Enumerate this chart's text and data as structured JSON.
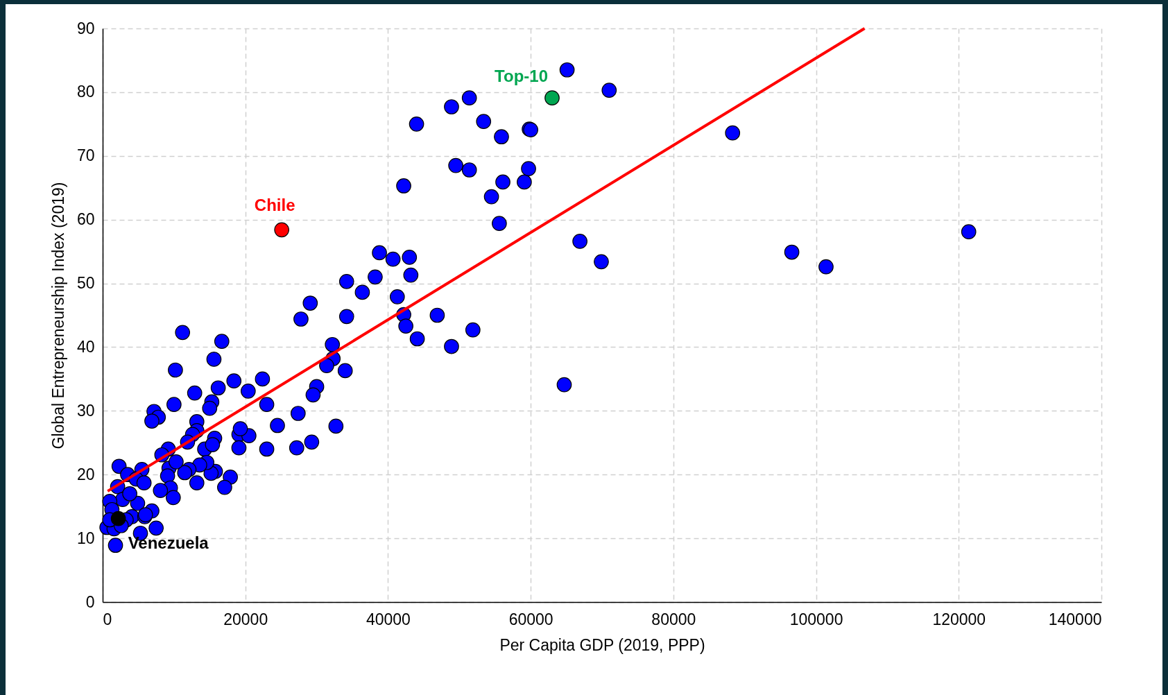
{
  "chart_data": {
    "type": "scatter",
    "xlabel": "Per Capita GDP (2019, PPP)",
    "ylabel": "Global Entrepreneurship Index (2019)",
    "xlim": [
      0,
      140000
    ],
    "ylim": [
      0,
      90
    ],
    "xticks": [
      0,
      20000,
      40000,
      60000,
      80000,
      100000,
      120000,
      140000
    ],
    "yticks": [
      0,
      10,
      20,
      30,
      40,
      50,
      60,
      70,
      80,
      90
    ],
    "grid": true,
    "marker": "circle",
    "series": [
      {
        "color": "#0000ff",
        "x": [
          44000,
          48900,
          51400,
          53400,
          55900,
          59800,
          60000,
          65100,
          71000,
          42200,
          49500,
          51400,
          56100,
          59100,
          59700,
          54500,
          55600,
          66900,
          69900,
          88300,
          96600,
          101400,
          121400,
          64700,
          38800,
          40700,
          43000,
          43200,
          38200,
          34200,
          36400,
          41300,
          42200,
          42500,
          44100,
          46900,
          51900,
          48900,
          29100,
          27800,
          34200,
          32200,
          32300,
          31400,
          34000,
          30000,
          29500,
          27400,
          32700,
          29300,
          27200,
          24500,
          23000,
          22400,
          23000,
          20400,
          18400,
          16700,
          11200,
          15600,
          10200,
          10000,
          12900,
          16200,
          15300,
          15000,
          7200,
          7800,
          6900,
          13200,
          13200,
          12600,
          11900,
          9200,
          8300,
          14300,
          15700,
          15400,
          19100,
          20500,
          19300,
          19100,
          17900,
          17100,
          15800,
          15200,
          14600,
          13600,
          13200,
          12100,
          11500,
          9300,
          10300,
          9100,
          9500,
          8100,
          9900,
          5500,
          2300,
          3500,
          4700,
          5800,
          2100,
          2800,
          1000,
          1300,
          600,
          1600,
          1800,
          4100,
          4900,
          5900,
          6900,
          6000,
          5300,
          7500,
          3300,
          2600,
          1000,
          3800
        ],
        "values": [
          75,
          77.7,
          79.1,
          75.4,
          73.0,
          74.2,
          74.1,
          83.5,
          80.3,
          65.3,
          68.5,
          67.8,
          65.9,
          65.9,
          68.0,
          63.6,
          59.4,
          56.6,
          53.4,
          73.6,
          54.9,
          52.6,
          58.1,
          34.1,
          54.8,
          53.8,
          54.1,
          51.3,
          51.0,
          50.3,
          48.6,
          47.9,
          45.1,
          43.3,
          41.3,
          45.0,
          42.7,
          40.1,
          46.9,
          44.4,
          44.8,
          40.4,
          38.2,
          37.1,
          36.3,
          33.8,
          32.5,
          29.6,
          27.6,
          25.1,
          24.2,
          27.7,
          31.0,
          35.0,
          24.0,
          33.1,
          34.7,
          40.9,
          42.3,
          38.1,
          36.4,
          31.0,
          32.8,
          33.6,
          31.4,
          30.4,
          29.9,
          29.0,
          28.4,
          28.3,
          26.9,
          26.3,
          25.1,
          24.0,
          23.1,
          24.0,
          25.7,
          24.7,
          26.3,
          26.1,
          27.2,
          24.2,
          19.6,
          18.0,
          20.5,
          20.2,
          21.9,
          21.5,
          18.7,
          20.8,
          20.3,
          21.0,
          22.0,
          19.8,
          17.9,
          17.5,
          16.4,
          20.8,
          21.3,
          20.0,
          19.3,
          18.7,
          18.1,
          16.1,
          15.8,
          14.5,
          11.7,
          11.5,
          8.9,
          13.4,
          15.5,
          13.4,
          14.3,
          13.7,
          10.8,
          11.6,
          12.9,
          12.0,
          12.9,
          17.0
        ]
      },
      {
        "type": "line",
        "marker": "none",
        "color": "#ff0000",
        "x": [
          700,
          106800
        ],
        "values": [
          17.4,
          90
        ]
      },
      {
        "name": "Chile",
        "color": "#ff0000",
        "x": [
          25100
        ],
        "values": [
          58.4
        ]
      },
      {
        "name": "Top-10",
        "color": "#00a651",
        "x": [
          63000
        ],
        "values": [
          79.1
        ]
      },
      {
        "name": "Venezuela",
        "color": "#000000",
        "x": [
          2200
        ],
        "values": [
          13.1
        ]
      }
    ]
  }
}
